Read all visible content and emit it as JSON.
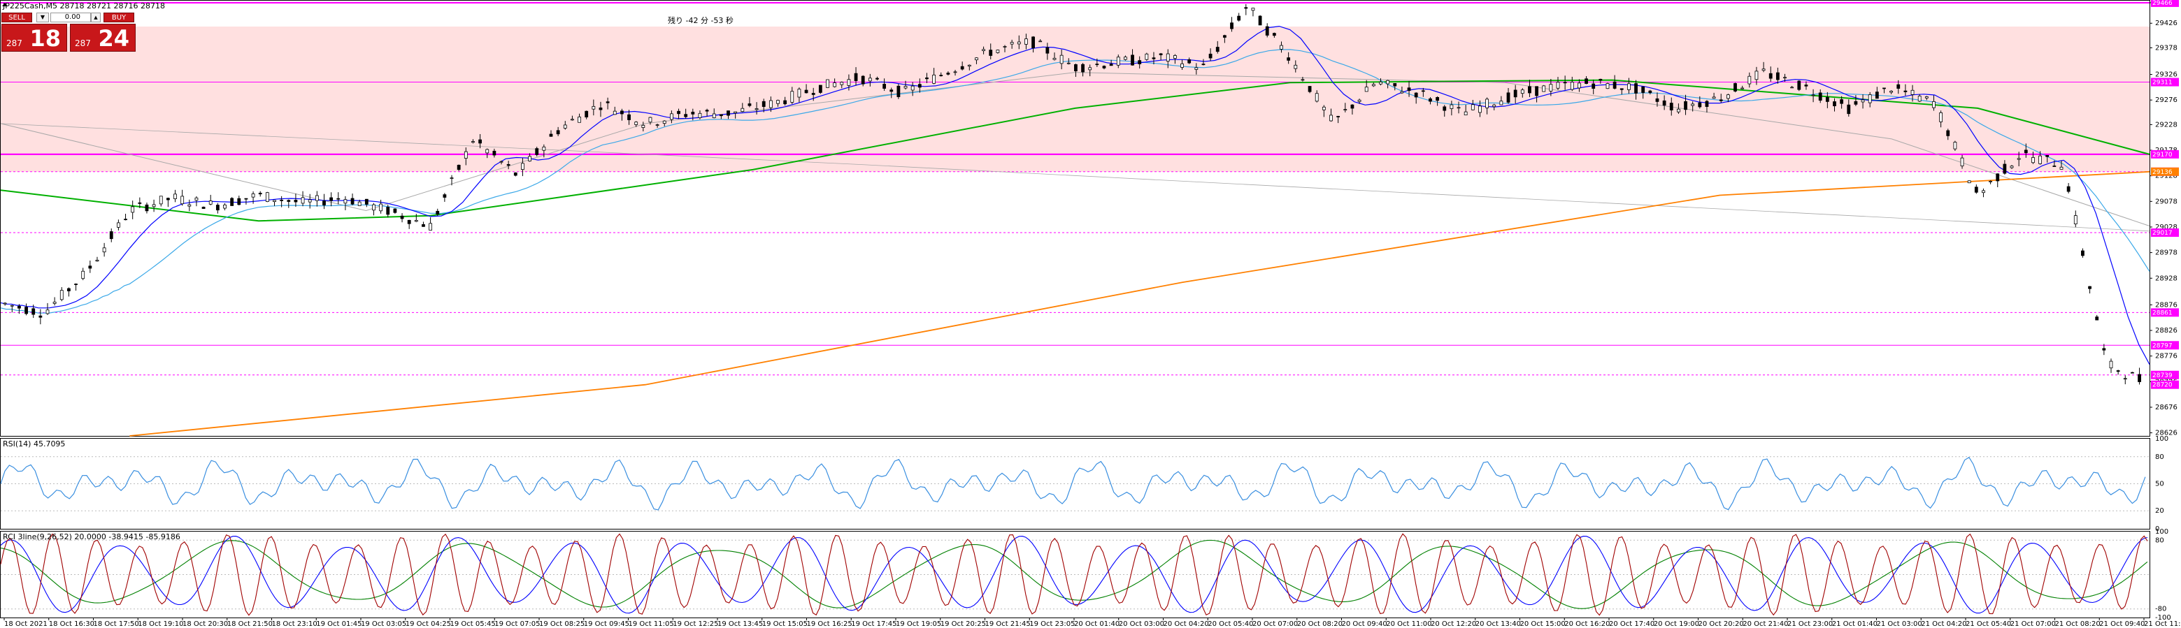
{
  "header": {
    "symbol_line": "JP225Cash,M5  28718 28721 28716 28718",
    "countdown": "残り -42 分 -53 秒"
  },
  "trade_panel": {
    "sell_label": "SELL",
    "buy_label": "BUY",
    "quantity": "0.00",
    "sell_price_small": "287",
    "sell_price_big": "18",
    "buy_price_small": "287",
    "buy_price_big": "24"
  },
  "colors": {
    "zone_fill": "#ffe0e0",
    "level_line": "#ff00ff",
    "ma_orange": "#ff8000",
    "ma_green": "#00b000",
    "ma_gray": "#a8a8a8",
    "ma_blue": "#0000ff",
    "ma_skyblue": "#3aa8e8",
    "rsi_line": "#3a8fe0",
    "rci_red": "#a00000",
    "rci_blue": "#0000ff",
    "rci_green": "#008000"
  },
  "chart_data": [
    {
      "type": "line",
      "title": "JP225Cash,M5",
      "ylim": [
        28620,
        29470
      ],
      "y_ticks": [
        "29466",
        "29426",
        "29378",
        "29326",
        "29276",
        "29228",
        "29178",
        "29128",
        "29078",
        "29028",
        "28978",
        "28928",
        "28876",
        "28826",
        "28776",
        "28726",
        "28676",
        "28626"
      ],
      "x_ticks": [
        "18 Oct 2021",
        "18 Oct 16:30",
        "18 Oct 17:50",
        "18 Oct 19:10",
        "18 Oct 20:30",
        "18 Oct 21:50",
        "18 Oct 23:10",
        "19 Oct 01:45",
        "19 Oct 03:05",
        "19 Oct 04:25",
        "19 Oct 05:45",
        "19 Oct 07:05",
        "19 Oct 08:25",
        "19 Oct 09:45",
        "19 Oct 11:05",
        "19 Oct 12:25",
        "19 Oct 13:45",
        "19 Oct 15:05",
        "19 Oct 16:25",
        "19 Oct 17:45",
        "19 Oct 19:05",
        "19 Oct 20:25",
        "19 Oct 21:45",
        "19 Oct 23:05",
        "20 Oct 01:40",
        "20 Oct 03:00",
        "20 Oct 04:20",
        "20 Oct 05:40",
        "20 Oct 07:00",
        "20 Oct 08:20",
        "20 Oct 09:40",
        "20 Oct 11:00",
        "20 Oct 12:20",
        "20 Oct 13:40",
        "20 Oct 15:00",
        "20 Oct 16:20",
        "20 Oct 17:40",
        "20 Oct 19:00",
        "20 Oct 20:20",
        "20 Oct 21:40",
        "21 Oct 23:00",
        "21 Oct 01:40",
        "21 Oct 03:00",
        "21 Oct 04:20",
        "21 Oct 05:40",
        "21 Oct 07:00",
        "21 Oct 08:20",
        "21 Oct 09:40",
        "21 Oct 11:00"
      ],
      "levels": [
        {
          "tag": "29466",
          "value": 29466,
          "style": "solid"
        },
        {
          "tag": "29311",
          "value": 29311,
          "style": "solid"
        },
        {
          "tag": "29170",
          "value": 29170,
          "style": "solid"
        },
        {
          "tag": "29136",
          "value": 29136,
          "style": "dashed"
        },
        {
          "tag": "29017",
          "value": 29017,
          "style": "dashed"
        },
        {
          "tag": "28861",
          "value": 28861,
          "style": "dashed"
        },
        {
          "tag": "28797",
          "value": 28797,
          "style": "solid"
        },
        {
          "tag": "28739",
          "value": 28739,
          "style": "dashed"
        }
      ],
      "current_price": {
        "tag": "28720",
        "value": 28720
      },
      "orange_tag": {
        "tag": "29136",
        "value": 29136
      },
      "price_series": {
        "name": "JP225Cash",
        "x": [
          0,
          2,
          4,
          6,
          8,
          10,
          12,
          14,
          16,
          18,
          20,
          22,
          24,
          26,
          28,
          30,
          32,
          34,
          36,
          38,
          40,
          42,
          44,
          46,
          48,
          50,
          52,
          54,
          56,
          58,
          60,
          62,
          64,
          66,
          68,
          70,
          72,
          74,
          76,
          78,
          80,
          82,
          84,
          86,
          88,
          90,
          92,
          94,
          96,
          98,
          100
        ],
        "values": [
          28880,
          28860,
          28940,
          29060,
          29085,
          29070,
          29090,
          29075,
          29085,
          29060,
          29030,
          29200,
          29130,
          29220,
          29270,
          29230,
          29250,
          29250,
          29270,
          29300,
          29320,
          29290,
          29330,
          29370,
          29390,
          29340,
          29350,
          29360,
          29340,
          29460,
          29360,
          29230,
          29310,
          29290,
          29250,
          29280,
          29300,
          29310,
          29300,
          29260,
          29280,
          29330,
          29300,
          29260,
          29300,
          29270,
          29090,
          29170,
          29150,
          28760,
          28720
        ]
      }
    },
    {
      "type": "line",
      "title": "RSI(14) 45.7095",
      "ylim": [
        0,
        100
      ],
      "y_ticks": [
        "100",
        "80",
        "50",
        "20",
        "0"
      ]
    },
    {
      "type": "line",
      "title": "RCI 3line(9,26,52) 20.0000 -38.9415 -85.9186",
      "ylim": [
        -100,
        100
      ],
      "y_ticks": [
        "100",
        "80",
        "-80",
        "-100"
      ]
    }
  ]
}
